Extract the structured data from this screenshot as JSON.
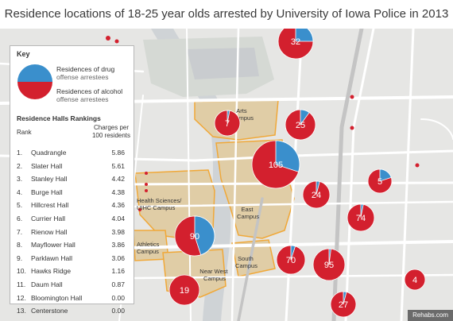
{
  "title": "Residence locations of 18-25 year olds arrested by University of Iowa Police in 2013",
  "colors": {
    "drug": "#3a8fcc",
    "alcohol": "#d3202e",
    "campus_fill": "#e0cda6",
    "campus_border": "#f0a838",
    "road": "#ffffff",
    "map_bg": "#e6e6e4",
    "water": "#cfd3d6"
  },
  "key": {
    "title": "Key",
    "drug_label": "Residences of drug",
    "drug_sub": "offense arrestees",
    "alcohol_label": "Residences of alcohol",
    "alcohol_sub": "offense arrestees",
    "rankings_title": "Residence Halls Rankings",
    "rank_header": "Rank",
    "charges_header": "Charges per 100 residents",
    "rankings": [
      {
        "rank": "1.",
        "name": "Quadrangle",
        "value": "5.86"
      },
      {
        "rank": "2.",
        "name": "Slater Hall",
        "value": "5.61"
      },
      {
        "rank": "3.",
        "name": "Stanley Hall",
        "value": "4.42"
      },
      {
        "rank": "4.",
        "name": "Burge Hall",
        "value": "4.38"
      },
      {
        "rank": "5.",
        "name": "Hillcrest Hall",
        "value": "4.36"
      },
      {
        "rank": "6.",
        "name": "Currier Hall",
        "value": "4.04"
      },
      {
        "rank": "7.",
        "name": "Rienow Hall",
        "value": "3.98"
      },
      {
        "rank": "8.",
        "name": "Mayflower Hall",
        "value": "3.86"
      },
      {
        "rank": "9.",
        "name": "Parklawn Hall",
        "value": "3.06"
      },
      {
        "rank": "10.",
        "name": "Hawks Ridge",
        "value": "1.16"
      },
      {
        "rank": "11.",
        "name": "Daum Hall",
        "value": "0.87"
      },
      {
        "rank": "12.",
        "name": "Bloomington Hall",
        "value": "0.00"
      },
      {
        "rank": "13.",
        "name": "Centerstone",
        "value": "0.00"
      }
    ]
  },
  "areas": [
    {
      "lines": [
        "Arts",
        "Campus"
      ]
    },
    {
      "lines": [
        "Health Sciences/",
        "UIHC Campus"
      ]
    },
    {
      "lines": [
        "East",
        "Campus"
      ]
    },
    {
      "lines": [
        "Athletics",
        "Campus"
      ]
    },
    {
      "lines": [
        "Near West",
        "Campus"
      ]
    },
    {
      "lines": [
        "South",
        "Campus"
      ]
    }
  ],
  "markers": [
    {
      "label": "32",
      "drug_fraction": 0.25
    },
    {
      "label": "7",
      "drug_fraction": 0.03
    },
    {
      "label": "25",
      "drug_fraction": 0.1
    },
    {
      "label": "105",
      "drug_fraction": 0.3
    },
    {
      "label": "24",
      "drug_fraction": 0.04
    },
    {
      "label": "5",
      "drug_fraction": 0.2
    },
    {
      "label": "74",
      "drug_fraction": 0.03
    },
    {
      "label": "90",
      "drug_fraction": 0.45
    },
    {
      "label": "70",
      "drug_fraction": 0.05
    },
    {
      "label": "95",
      "drug_fraction": 0.02
    },
    {
      "label": "4",
      "drug_fraction": 0.0
    },
    {
      "label": "19",
      "drug_fraction": 0.0
    },
    {
      "label": "27",
      "drug_fraction": 0.04
    }
  ],
  "credit": "Rehabs.com"
}
